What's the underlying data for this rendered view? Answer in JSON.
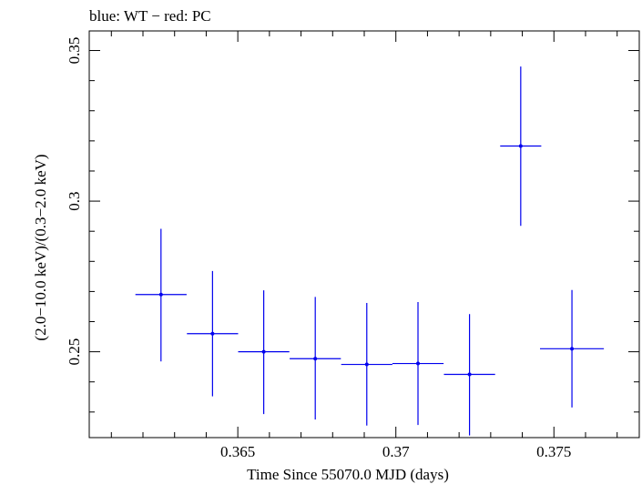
{
  "header": {
    "title": "blue: WT − red: PC"
  },
  "chart_data": {
    "type": "scatter",
    "title": "blue: WT − red: PC",
    "xlabel": "Time Since 55070.0 MJD (days)",
    "ylabel": "(2.0−10.0 keV)/(0.3−2.0 keV)",
    "xlim": [
      0.3603,
      0.3777
    ],
    "ylim": [
      0.2215,
      0.3565
    ],
    "x_ticks": [
      {
        "value": 0.365,
        "label": "0.365"
      },
      {
        "value": 0.37,
        "label": "0.37"
      },
      {
        "value": 0.375,
        "label": "0.375"
      }
    ],
    "y_ticks": [
      {
        "value": 0.25,
        "label": "0.25"
      },
      {
        "value": 0.3,
        "label": "0.3"
      },
      {
        "value": 0.35,
        "label": "0.35"
      }
    ],
    "x_minor_step": 0.001,
    "y_minor_step": 0.01,
    "grid": false,
    "series": [
      {
        "name": "WT",
        "color": "#0000ee",
        "points": [
          {
            "x": 0.36257,
            "xerr": 0.00081,
            "y": 0.269,
            "ylo": 0.2468,
            "yhi": 0.2908
          },
          {
            "x": 0.3642,
            "xerr": 0.00081,
            "y": 0.256,
            "ylo": 0.2352,
            "yhi": 0.2768
          },
          {
            "x": 0.36582,
            "xerr": 0.00081,
            "y": 0.25,
            "ylo": 0.2293,
            "yhi": 0.2704
          },
          {
            "x": 0.36745,
            "xerr": 0.00081,
            "y": 0.2477,
            "ylo": 0.2275,
            "yhi": 0.2682
          },
          {
            "x": 0.36908,
            "xerr": 0.00081,
            "y": 0.2458,
            "ylo": 0.2255,
            "yhi": 0.2662
          },
          {
            "x": 0.3707,
            "xerr": 0.00081,
            "y": 0.2461,
            "ylo": 0.2257,
            "yhi": 0.2665
          },
          {
            "x": 0.37233,
            "xerr": 0.00081,
            "y": 0.2425,
            "ylo": 0.2222,
            "yhi": 0.2625
          },
          {
            "x": 0.37395,
            "xerr": 0.00065,
            "y": 0.3183,
            "ylo": 0.2918,
            "yhi": 0.3447
          },
          {
            "x": 0.37557,
            "xerr": 0.00101,
            "y": 0.251,
            "ylo": 0.2315,
            "yhi": 0.2705
          }
        ]
      }
    ]
  }
}
